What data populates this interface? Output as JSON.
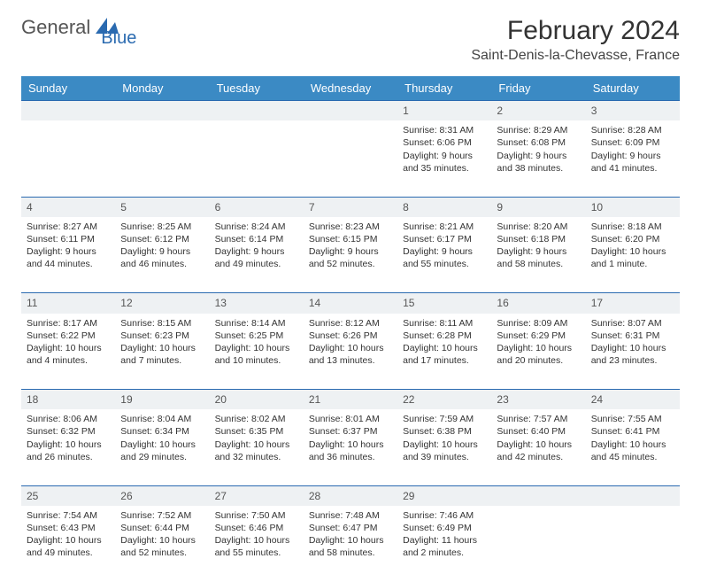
{
  "logo": {
    "text1": "General",
    "text2": "Blue"
  },
  "title": "February 2024",
  "location": "Saint-Denis-la-Chevasse, France",
  "colors": {
    "header_bg": "#3b8ac4",
    "header_text": "#ffffff",
    "daynum_bg": "#eef1f3",
    "row_border": "#2a6ab0",
    "logo_blue": "#2a6ab0",
    "logo_gray": "#555555",
    "body_text": "#333333"
  },
  "typography": {
    "title_fontsize": 30,
    "location_fontsize": 16,
    "header_fontsize": 13,
    "daynum_fontsize": 12,
    "cell_fontsize": 10.5
  },
  "day_headers": [
    "Sunday",
    "Monday",
    "Tuesday",
    "Wednesday",
    "Thursday",
    "Friday",
    "Saturday"
  ],
  "weeks": [
    {
      "nums": [
        "",
        "",
        "",
        "",
        "1",
        "2",
        "3"
      ],
      "cells": [
        [],
        [],
        [],
        [],
        [
          "Sunrise: 8:31 AM",
          "Sunset: 6:06 PM",
          "Daylight: 9 hours and 35 minutes."
        ],
        [
          "Sunrise: 8:29 AM",
          "Sunset: 6:08 PM",
          "Daylight: 9 hours and 38 minutes."
        ],
        [
          "Sunrise: 8:28 AM",
          "Sunset: 6:09 PM",
          "Daylight: 9 hours and 41 minutes."
        ]
      ]
    },
    {
      "nums": [
        "4",
        "5",
        "6",
        "7",
        "8",
        "9",
        "10"
      ],
      "cells": [
        [
          "Sunrise: 8:27 AM",
          "Sunset: 6:11 PM",
          "Daylight: 9 hours and 44 minutes."
        ],
        [
          "Sunrise: 8:25 AM",
          "Sunset: 6:12 PM",
          "Daylight: 9 hours and 46 minutes."
        ],
        [
          "Sunrise: 8:24 AM",
          "Sunset: 6:14 PM",
          "Daylight: 9 hours and 49 minutes."
        ],
        [
          "Sunrise: 8:23 AM",
          "Sunset: 6:15 PM",
          "Daylight: 9 hours and 52 minutes."
        ],
        [
          "Sunrise: 8:21 AM",
          "Sunset: 6:17 PM",
          "Daylight: 9 hours and 55 minutes."
        ],
        [
          "Sunrise: 8:20 AM",
          "Sunset: 6:18 PM",
          "Daylight: 9 hours and 58 minutes."
        ],
        [
          "Sunrise: 8:18 AM",
          "Sunset: 6:20 PM",
          "Daylight: 10 hours and 1 minute."
        ]
      ]
    },
    {
      "nums": [
        "11",
        "12",
        "13",
        "14",
        "15",
        "16",
        "17"
      ],
      "cells": [
        [
          "Sunrise: 8:17 AM",
          "Sunset: 6:22 PM",
          "Daylight: 10 hours and 4 minutes."
        ],
        [
          "Sunrise: 8:15 AM",
          "Sunset: 6:23 PM",
          "Daylight: 10 hours and 7 minutes."
        ],
        [
          "Sunrise: 8:14 AM",
          "Sunset: 6:25 PM",
          "Daylight: 10 hours and 10 minutes."
        ],
        [
          "Sunrise: 8:12 AM",
          "Sunset: 6:26 PM",
          "Daylight: 10 hours and 13 minutes."
        ],
        [
          "Sunrise: 8:11 AM",
          "Sunset: 6:28 PM",
          "Daylight: 10 hours and 17 minutes."
        ],
        [
          "Sunrise: 8:09 AM",
          "Sunset: 6:29 PM",
          "Daylight: 10 hours and 20 minutes."
        ],
        [
          "Sunrise: 8:07 AM",
          "Sunset: 6:31 PM",
          "Daylight: 10 hours and 23 minutes."
        ]
      ]
    },
    {
      "nums": [
        "18",
        "19",
        "20",
        "21",
        "22",
        "23",
        "24"
      ],
      "cells": [
        [
          "Sunrise: 8:06 AM",
          "Sunset: 6:32 PM",
          "Daylight: 10 hours and 26 minutes."
        ],
        [
          "Sunrise: 8:04 AM",
          "Sunset: 6:34 PM",
          "Daylight: 10 hours and 29 minutes."
        ],
        [
          "Sunrise: 8:02 AM",
          "Sunset: 6:35 PM",
          "Daylight: 10 hours and 32 minutes."
        ],
        [
          "Sunrise: 8:01 AM",
          "Sunset: 6:37 PM",
          "Daylight: 10 hours and 36 minutes."
        ],
        [
          "Sunrise: 7:59 AM",
          "Sunset: 6:38 PM",
          "Daylight: 10 hours and 39 minutes."
        ],
        [
          "Sunrise: 7:57 AM",
          "Sunset: 6:40 PM",
          "Daylight: 10 hours and 42 minutes."
        ],
        [
          "Sunrise: 7:55 AM",
          "Sunset: 6:41 PM",
          "Daylight: 10 hours and 45 minutes."
        ]
      ]
    },
    {
      "nums": [
        "25",
        "26",
        "27",
        "28",
        "29",
        "",
        ""
      ],
      "cells": [
        [
          "Sunrise: 7:54 AM",
          "Sunset: 6:43 PM",
          "Daylight: 10 hours and 49 minutes."
        ],
        [
          "Sunrise: 7:52 AM",
          "Sunset: 6:44 PM",
          "Daylight: 10 hours and 52 minutes."
        ],
        [
          "Sunrise: 7:50 AM",
          "Sunset: 6:46 PM",
          "Daylight: 10 hours and 55 minutes."
        ],
        [
          "Sunrise: 7:48 AM",
          "Sunset: 6:47 PM",
          "Daylight: 10 hours and 58 minutes."
        ],
        [
          "Sunrise: 7:46 AM",
          "Sunset: 6:49 PM",
          "Daylight: 11 hours and 2 minutes."
        ],
        [],
        []
      ]
    }
  ]
}
